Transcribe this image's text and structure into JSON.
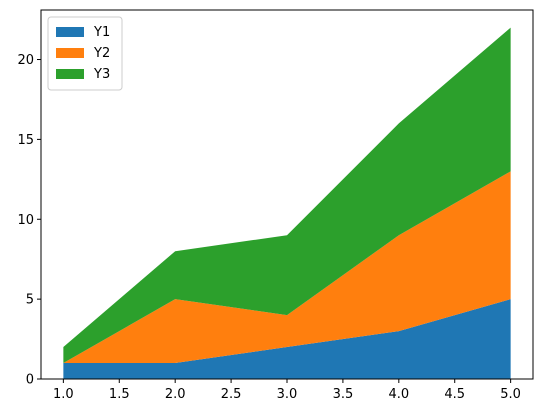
{
  "chart_data": {
    "type": "area",
    "stacked": true,
    "title": "",
    "xlabel": "",
    "ylabel": "",
    "x": [
      1,
      2,
      3,
      4,
      5
    ],
    "series": [
      {
        "name": "Y1",
        "values": [
          1,
          1,
          2,
          3,
          5
        ],
        "color": "#1f77b4"
      },
      {
        "name": "Y2",
        "values": [
          0,
          4,
          2,
          6,
          8
        ],
        "color": "#ff7f0e"
      },
      {
        "name": "Y3",
        "values": [
          1,
          3,
          5,
          7,
          9
        ],
        "color": "#2ca02c"
      }
    ],
    "xlim": [
      0.8,
      5.2
    ],
    "ylim": [
      0,
      23.1
    ],
    "xticks": [
      1.0,
      1.5,
      2.0,
      2.5,
      3.0,
      3.5,
      4.0,
      4.5,
      5.0
    ],
    "xtick_labels": [
      "1.0",
      "1.5",
      "2.0",
      "2.5",
      "3.0",
      "3.5",
      "4.0",
      "4.5",
      "5.0"
    ],
    "yticks": [
      0,
      5,
      10,
      15,
      20
    ],
    "ytick_labels": [
      "0",
      "5",
      "10",
      "15",
      "20"
    ],
    "grid": false,
    "legend_position": "top-left"
  }
}
